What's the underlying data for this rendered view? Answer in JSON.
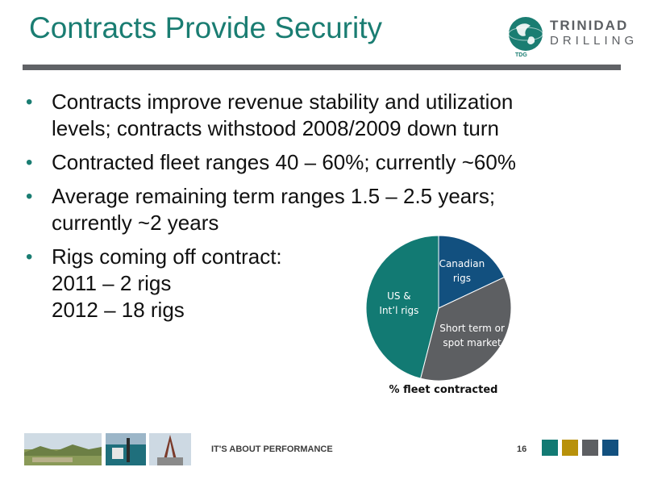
{
  "slide": {
    "title": "Contracts Provide Security",
    "page_number": "16",
    "footer_tagline": "IT'S ABOUT PERFORMANCE"
  },
  "logo": {
    "word1": "TRINIDAD",
    "word2": "DRILLING",
    "sub": "TDG",
    "icon": "globe-icon"
  },
  "bullets": [
    {
      "lines": [
        "Contracts improve revenue stability and utilization",
        "levels; contracts withstood 2008/2009 down turn"
      ]
    },
    {
      "lines": [
        "Contracted fleet ranges 40 – 60%; currently ~60%"
      ]
    },
    {
      "lines": [
        "Average remaining term ranges 1.5 – 2.5 years;",
        "currently ~2 years"
      ]
    },
    {
      "lines": [
        "Rigs coming off contract:",
        "2011 – 2 rigs",
        "2012 – 18 rigs"
      ]
    }
  ],
  "colors": {
    "teal": "#127a73",
    "navy": "#12507f",
    "gray": "#5d5f62",
    "gold": "#b8910a"
  },
  "chart_data": {
    "type": "pie",
    "title": "% fleet contracted",
    "slices": [
      {
        "name": "Canadian rigs",
        "label_lines": [
          "Canadian",
          "rigs"
        ],
        "value": 18,
        "color": "#12507f"
      },
      {
        "name": "Short term or spot market",
        "label_lines": [
          "Short term or",
          "spot market"
        ],
        "value": 36,
        "color": "#5d5f62"
      },
      {
        "name": "US & Int’l rigs",
        "label_lines": [
          "US &",
          "Int’l rigs"
        ],
        "value": 46,
        "color": "#127a73"
      }
    ]
  },
  "footer_swatches": [
    "#127a73",
    "#b8910a",
    "#5d5f62",
    "#12507f"
  ],
  "footer_photos": [
    "landscape-photo",
    "rig-equipment-photo",
    "drilling-rig-photo"
  ]
}
